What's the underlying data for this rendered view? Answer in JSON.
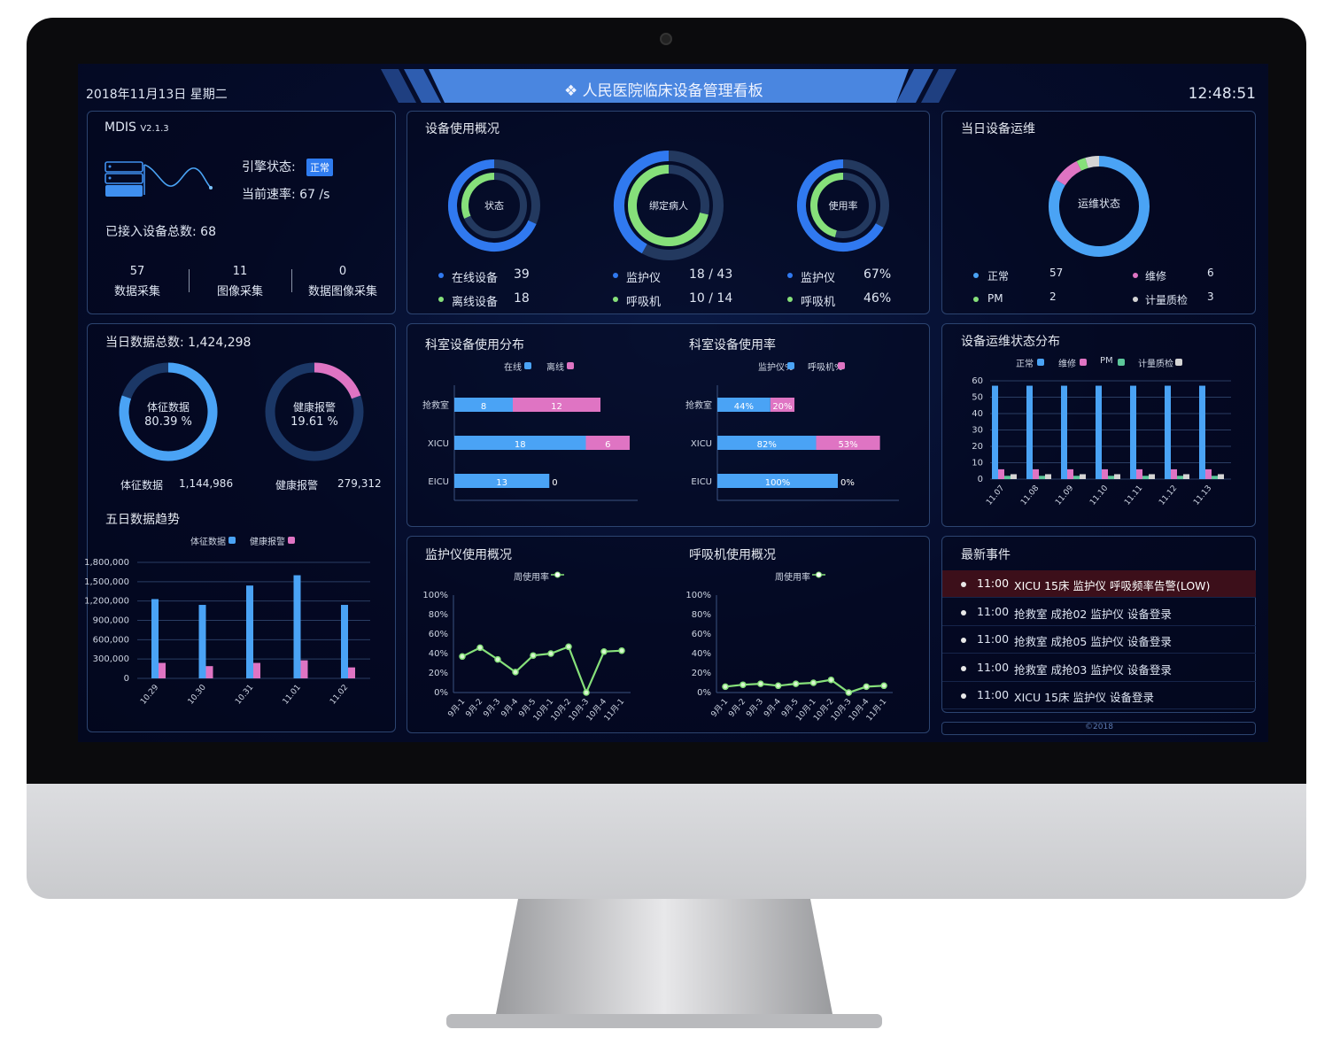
{
  "header": {
    "date": "2018年11月13日 星期二",
    "title": "人民医院临床设备管理看板",
    "time": "12:48:51"
  },
  "system": {
    "name": "MDIS",
    "version": "V2.1.3",
    "engine_label": "引擎状态:",
    "engine_status": "正常",
    "rate_label": "当前速率:",
    "rate": "67 /s",
    "total_label": "已接入设备总数:",
    "total": "68",
    "stats": [
      {
        "value": "57",
        "label": "数据采集"
      },
      {
        "value": "11",
        "label": "图像采集"
      },
      {
        "value": "0",
        "label": "数据图像采集"
      }
    ]
  },
  "usage": {
    "title": "设备使用概况",
    "donuts": [
      {
        "center": "状态",
        "outer_fraction": 0.684,
        "inner_fraction": 0.316,
        "legend": [
          {
            "label": "在线设备",
            "value": "39"
          },
          {
            "label": "离线设备",
            "value": "18"
          }
        ]
      },
      {
        "center": "绑定病人",
        "outer_fraction": 0.419,
        "inner_fraction": 0.714,
        "legend": [
          {
            "label": "监护仪",
            "value": "18 / 43"
          },
          {
            "label": "呼吸机",
            "value": "10 / 14"
          }
        ]
      },
      {
        "center": "使用率",
        "outer_fraction": 0.67,
        "inner_fraction": 0.46,
        "legend": [
          {
            "label": "监护仪",
            "value": "67%"
          },
          {
            "label": "呼吸机",
            "value": "46%"
          }
        ]
      }
    ]
  },
  "maintenance": {
    "title": "当日设备运维",
    "center": "运维状态",
    "items": [
      {
        "label": "正常",
        "value": "57",
        "color": "#4aa3f5"
      },
      {
        "label": "维修",
        "value": "6",
        "color": "#df74c3"
      },
      {
        "label": "PM",
        "value": "2",
        "color": "#86e07a"
      },
      {
        "label": "计量质检",
        "value": "3",
        "color": "#d4d4d4"
      }
    ]
  },
  "daily": {
    "title": "当日数据总数: 1,424,298",
    "donuts": [
      {
        "center_label": "体征数据",
        "center_value": "80.39 %",
        "fraction": 0.8039,
        "color": "#4aa3f5",
        "label": "体征数据",
        "value": "1,144,986"
      },
      {
        "center_label": "健康报警",
        "center_value": "19.61 %",
        "fraction": 0.1961,
        "color": "#df74c3",
        "label": "健康报警",
        "value": "279,312"
      }
    ]
  },
  "events": {
    "title": "最新事件",
    "items": [
      {
        "time": "11:00",
        "text": "XICU 15床 监护仪 呼吸频率告警(LOW)",
        "alert": true
      },
      {
        "time": "11:00",
        "text": "抢救室 成抢02 监护仪 设备登录"
      },
      {
        "time": "11:00",
        "text": "抢救室 成抢05 监护仪 设备登录"
      },
      {
        "time": "11:00",
        "text": "抢救室 成抢03 监护仪 设备登录"
      },
      {
        "time": "11:00",
        "text": "XICU 15床 监护仪 设备登录"
      }
    ]
  },
  "footer": "©2018",
  "colors": {
    "blue": "#4aa3f5",
    "pink": "#df74c3",
    "green": "#86e07a",
    "grey": "#d4d4d4",
    "ring_dark": "#23395f",
    "banner": "#4a86e0"
  },
  "chart_data": [
    {
      "id": "five_day",
      "type": "bar",
      "title": "五日数据趋势",
      "categories": [
        "10.29",
        "10.30",
        "10.31",
        "11.01",
        "11.02"
      ],
      "ylim": [
        0,
        1800000
      ],
      "yticks": [
        "0",
        "300,000",
        "600,000",
        "900,000",
        "1,200,000",
        "1,500,000",
        "1,800,000"
      ],
      "series": [
        {
          "name": "体征数据",
          "values": [
            1230000,
            1140000,
            1440000,
            1600000,
            1140000
          ],
          "color": "#4aa3f5"
        },
        {
          "name": "健康报警",
          "values": [
            240000,
            190000,
            240000,
            280000,
            170000
          ],
          "color": "#df74c3"
        }
      ]
    },
    {
      "id": "dept_dist",
      "type": "bar",
      "orientation": "horizontal",
      "stacked": true,
      "title": "科室设备使用分布",
      "categories": [
        "抢救室",
        "XICU",
        "EICU"
      ],
      "series": [
        {
          "name": "在线",
          "values": [
            8,
            18,
            13
          ],
          "color": "#4aa3f5"
        },
        {
          "name": "离线",
          "values": [
            12,
            6,
            0
          ],
          "color": "#df74c3"
        }
      ]
    },
    {
      "id": "dept_rate",
      "type": "bar",
      "orientation": "horizontal",
      "stacked": true,
      "title": "科室设备使用率",
      "categories": [
        "抢救室",
        "XICU",
        "EICU"
      ],
      "series": [
        {
          "name": "监护仪",
          "values": [
            44,
            82,
            100
          ],
          "color": "#4aa3f5"
        },
        {
          "name": "呼吸机",
          "values": [
            20,
            53,
            0
          ],
          "color": "#df74c3"
        }
      ]
    },
    {
      "id": "status_dist",
      "type": "bar",
      "title": "设备运维状态分布",
      "categories": [
        "11.07",
        "11.08",
        "11.09",
        "11.10",
        "11.11",
        "11.12",
        "11.13"
      ],
      "ylim": [
        0,
        60
      ],
      "yticks": [
        "0",
        "10",
        "20",
        "30",
        "40",
        "50",
        "60"
      ],
      "series": [
        {
          "name": "正常",
          "values": [
            57,
            57,
            57,
            57,
            57,
            57,
            57
          ],
          "color": "#4aa3f5"
        },
        {
          "name": "维修",
          "values": [
            6,
            6,
            6,
            6,
            6,
            6,
            6
          ],
          "color": "#df74c3"
        },
        {
          "name": "PM",
          "values": [
            2,
            2,
            2,
            2,
            2,
            2,
            2
          ],
          "color": "#5cc79a"
        },
        {
          "name": "计量质检",
          "values": [
            3,
            3,
            3,
            3,
            3,
            3,
            3
          ],
          "color": "#d4d4d4"
        }
      ]
    },
    {
      "id": "monitor_line",
      "type": "line",
      "title": "监护仪使用概况",
      "categories": [
        "9月-1",
        "9月-2",
        "9月-3",
        "9月-4",
        "9月-5",
        "10月-1",
        "10月-2",
        "10月-3",
        "10月-4",
        "11月-1"
      ],
      "ylim": [
        0,
        100
      ],
      "yticks": [
        "0%",
        "20%",
        "40%",
        "60%",
        "80%",
        "100%"
      ],
      "series": [
        {
          "name": "周使用率",
          "values": [
            37,
            46,
            34,
            21,
            38,
            40,
            47,
            0,
            42,
            43
          ],
          "color": "#86e07a"
        }
      ]
    },
    {
      "id": "vent_line",
      "type": "line",
      "title": "呼吸机使用概况",
      "categories": [
        "9月-1",
        "9月-2",
        "9月-3",
        "9月-4",
        "9月-5",
        "10月-1",
        "10月-2",
        "10月-3",
        "10月-4",
        "11月-1"
      ],
      "ylim": [
        0,
        100
      ],
      "yticks": [
        "0%",
        "20%",
        "40%",
        "60%",
        "80%",
        "100%"
      ],
      "series": [
        {
          "name": "周使用率",
          "values": [
            6,
            8,
            9,
            7,
            9,
            10,
            13,
            0,
            6,
            7
          ],
          "color": "#86e07a"
        }
      ]
    }
  ]
}
